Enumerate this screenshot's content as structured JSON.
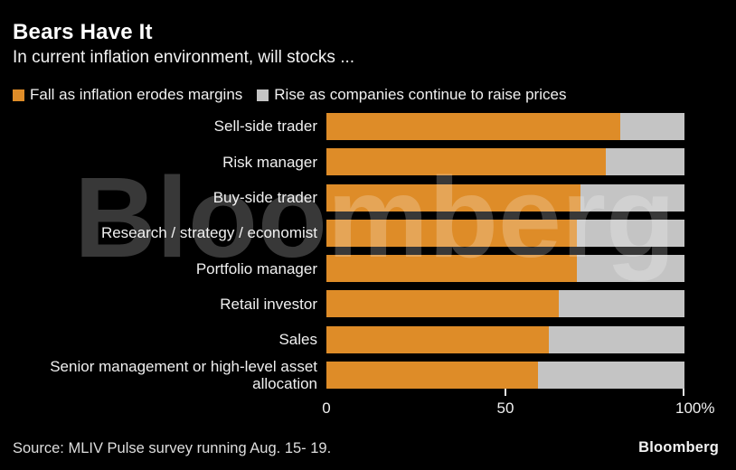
{
  "header": {
    "title": "Bears Have It",
    "subtitle": "In current inflation environment, will stocks ..."
  },
  "legend": {
    "items": [
      {
        "label": "Fall as inflation erodes margins",
        "color": "#DE8C28"
      },
      {
        "label": "Rise as companies continue to raise prices",
        "color": "#C4C4C4"
      }
    ]
  },
  "chart_data": {
    "type": "bar",
    "orientation": "horizontal",
    "stacked": true,
    "unit": "percent",
    "title": "Bears Have It",
    "subtitle": "In current inflation environment, will stocks ...",
    "categories": [
      "Sell-side trader",
      "Risk manager",
      "Buy-side trader",
      "Research / strategy / economist",
      "Portfolio manager",
      "Retail investor",
      "Sales",
      "Senior management or high-level asset allocation"
    ],
    "series": [
      {
        "name": "Fall as inflation erodes margins",
        "color": "#DE8C28",
        "values": [
          82,
          78,
          71,
          70,
          70,
          65,
          62,
          59
        ]
      },
      {
        "name": "Rise as companies continue to raise prices",
        "color": "#C4C4C4",
        "values": [
          18,
          22,
          29,
          30,
          30,
          35,
          38,
          41
        ]
      }
    ],
    "xlim": [
      0,
      100
    ],
    "x_tick_labels": [
      "0",
      "50",
      "100%"
    ],
    "grid": false,
    "legend_position": "top",
    "background": "#000000"
  },
  "watermark": "Bloomberg",
  "footer": {
    "source": "Source: MLIV Pulse survey running Aug. 15- 19.",
    "brand": "Bloomberg"
  }
}
